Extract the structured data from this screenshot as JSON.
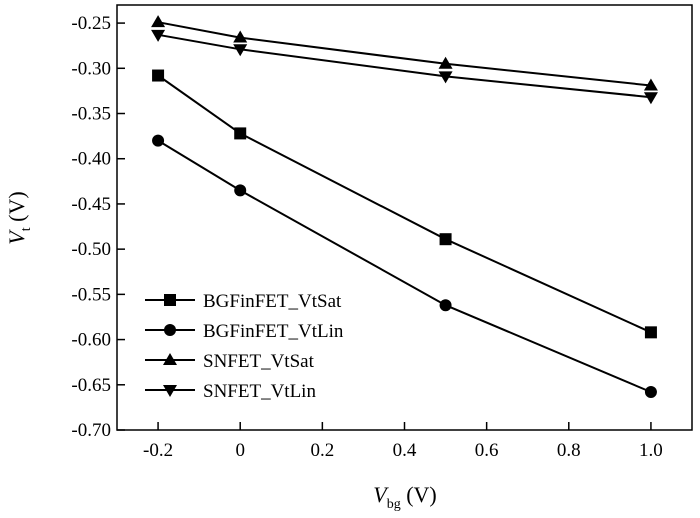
{
  "chart_data": {
    "type": "line",
    "x": [
      -0.2,
      0,
      0.5,
      1.0
    ],
    "series": [
      {
        "name": "BGFinFET_VtSat",
        "marker": "square",
        "values": [
          -0.308,
          -0.372,
          -0.489,
          -0.592
        ]
      },
      {
        "name": "BGFinFET_VtLin",
        "marker": "circle",
        "values": [
          -0.38,
          -0.435,
          -0.562,
          -0.658
        ]
      },
      {
        "name": "SNFET_VtSat",
        "marker": "triangle-up",
        "values": [
          -0.249,
          -0.266,
          -0.295,
          -0.319
        ]
      },
      {
        "name": "SNFET_VtLin",
        "marker": "triangle-down",
        "values": [
          -0.263,
          -0.279,
          -0.309,
          -0.332
        ]
      }
    ],
    "xlim": [
      -0.3,
      1.1
    ],
    "ylim": [
      -0.7,
      -0.23
    ],
    "xticks": [
      -0.2,
      0,
      0.2,
      0.4,
      0.6,
      0.8,
      1.0
    ],
    "xtick_labels": [
      "-0.2",
      "0",
      "0.2",
      "0.4",
      "0.6",
      "0.8",
      "1.0"
    ],
    "yticks": [
      -0.25,
      -0.3,
      -0.35,
      -0.4,
      -0.45,
      -0.5,
      -0.55,
      -0.6,
      -0.65,
      -0.7
    ],
    "ytick_labels": [
      "-0.25",
      "-0.30",
      "-0.35",
      "-0.40",
      "-0.45",
      "-0.50",
      "-0.55",
      "-0.60",
      "-0.65",
      "-0.70"
    ],
    "xlabel": {
      "main": "V",
      "sub": "bg",
      "unit": " (V)"
    },
    "ylabel": {
      "main": "V",
      "sub": "t",
      "unit": " (V)"
    },
    "legend_position": "bottom-left",
    "grid": false,
    "line_color": "#000000"
  }
}
